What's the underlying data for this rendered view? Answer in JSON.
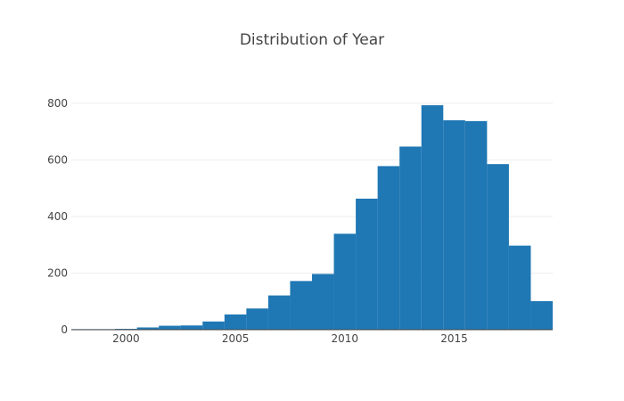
{
  "chart_data": {
    "type": "bar",
    "title": "Distribution of Year",
    "xlabel": "",
    "ylabel": "",
    "xlim": [
      1997.5,
      2019.5
    ],
    "ylim": [
      0,
      850
    ],
    "bin_width": 1,
    "x_ticks": [
      2000,
      2005,
      2010,
      2015
    ],
    "y_ticks": [
      0,
      200,
      400,
      600,
      800
    ],
    "grid": true,
    "bins": [
      {
        "x0": 1997.5,
        "x1": 1998.5,
        "value": 2
      },
      {
        "x0": 1998.5,
        "x1": 1999.5,
        "value": 2
      },
      {
        "x0": 1999.5,
        "x1": 2000.5,
        "value": 3
      },
      {
        "x0": 2000.5,
        "x1": 2001.5,
        "value": 8
      },
      {
        "x0": 2001.5,
        "x1": 2002.5,
        "value": 14
      },
      {
        "x0": 2002.5,
        "x1": 2003.5,
        "value": 15
      },
      {
        "x0": 2003.5,
        "x1": 2004.5,
        "value": 29
      },
      {
        "x0": 2004.5,
        "x1": 2005.5,
        "value": 54
      },
      {
        "x0": 2005.5,
        "x1": 2006.5,
        "value": 75
      },
      {
        "x0": 2006.5,
        "x1": 2007.5,
        "value": 121
      },
      {
        "x0": 2007.5,
        "x1": 2008.5,
        "value": 172
      },
      {
        "x0": 2008.5,
        "x1": 2009.5,
        "value": 197
      },
      {
        "x0": 2009.5,
        "x1": 2010.5,
        "value": 339
      },
      {
        "x0": 2010.5,
        "x1": 2011.5,
        "value": 463
      },
      {
        "x0": 2011.5,
        "x1": 2012.5,
        "value": 578
      },
      {
        "x0": 2012.5,
        "x1": 2013.5,
        "value": 647
      },
      {
        "x0": 2013.5,
        "x1": 2014.5,
        "value": 793
      },
      {
        "x0": 2014.5,
        "x1": 2015.5,
        "value": 740
      },
      {
        "x0": 2015.5,
        "x1": 2016.5,
        "value": 737
      },
      {
        "x0": 2016.5,
        "x1": 2017.5,
        "value": 585
      },
      {
        "x0": 2017.5,
        "x1": 2018.5,
        "value": 297
      },
      {
        "x0": 2018.5,
        "x1": 2019.5,
        "value": 101
      }
    ],
    "colors": {
      "bar": "#1f77b4",
      "grid": "#eeeeee",
      "zero_line": "#444444",
      "text": "#444444",
      "background": "#ffffff"
    }
  }
}
